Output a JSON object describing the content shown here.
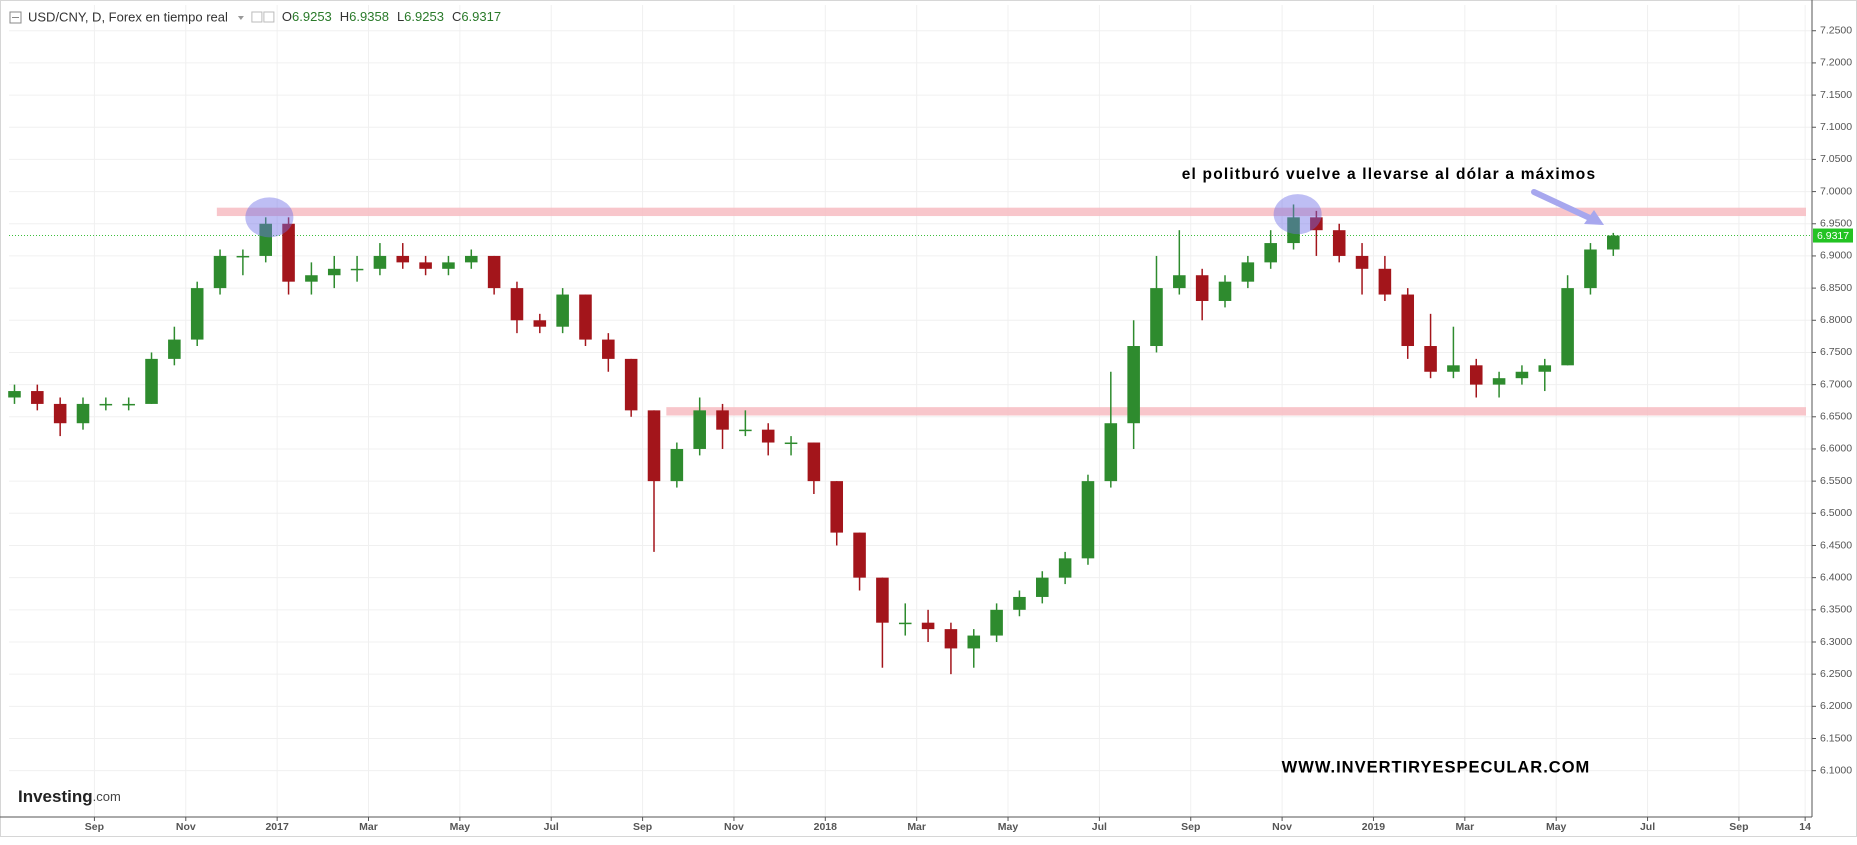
{
  "chart_data": {
    "type": "candlestick",
    "title": "USD/CNY, D, Forex en tiempo real",
    "ohlc_header": [
      {
        "label": "O",
        "value": 6.9253
      },
      {
        "label": "H",
        "value": 6.9358
      },
      {
        "label": "L",
        "value": 6.9253
      },
      {
        "label": "C",
        "value": 6.9317
      }
    ],
    "last_price": 6.9317,
    "annotation": "el politburó vuelve a llevarse al dólar a máximos",
    "watermark": "WWW.INVERTIRYESPECULAR.COM",
    "logo": {
      "name": "Investing",
      "suffix": ".com"
    },
    "up_color": "#2e8b2e",
    "down_color": "#a3151b",
    "xlim": [
      -1.87,
      37.6
    ],
    "xticks": [
      {
        "value": 0,
        "label": "Sep"
      },
      {
        "value": 2,
        "label": "Nov"
      },
      {
        "value": 4,
        "label": "2017"
      },
      {
        "value": 6,
        "label": "Mar"
      },
      {
        "value": 8,
        "label": "May"
      },
      {
        "value": 10,
        "label": "Jul"
      },
      {
        "value": 12,
        "label": "Sep"
      },
      {
        "value": 14,
        "label": "Nov"
      },
      {
        "value": 16,
        "label": "2018"
      },
      {
        "value": 18,
        "label": "Mar"
      },
      {
        "value": 20,
        "label": "May"
      },
      {
        "value": 22,
        "label": "Jul"
      },
      {
        "value": 24,
        "label": "Sep"
      },
      {
        "value": 26,
        "label": "Nov"
      },
      {
        "value": 28,
        "label": "2019"
      },
      {
        "value": 30,
        "label": "Mar"
      },
      {
        "value": 32,
        "label": "May"
      },
      {
        "value": 34,
        "label": "Jul"
      },
      {
        "value": 36,
        "label": "Sep"
      },
      {
        "value": 37.45,
        "label": "14"
      }
    ],
    "ylim": [
      6.028,
      7.29
    ],
    "yticks": [
      {
        "value": 6.1,
        "label": "6.1000"
      },
      {
        "value": 6.15,
        "label": "6.1500"
      },
      {
        "value": 6.2,
        "label": "6.2000"
      },
      {
        "value": 6.25,
        "label": "6.2500"
      },
      {
        "value": 6.3,
        "label": "6.3000"
      },
      {
        "value": 6.35,
        "label": "6.3500"
      },
      {
        "value": 6.4,
        "label": "6.4000"
      },
      {
        "value": 6.45,
        "label": "6.4500"
      },
      {
        "value": 6.5,
        "label": "6.5000"
      },
      {
        "value": 6.55,
        "label": "6.5500"
      },
      {
        "value": 6.6,
        "label": "6.6000"
      },
      {
        "value": 6.65,
        "label": "6.6500"
      },
      {
        "value": 6.7,
        "label": "6.7000"
      },
      {
        "value": 6.75,
        "label": "6.7500"
      },
      {
        "value": 6.8,
        "label": "6.8000"
      },
      {
        "value": 6.85,
        "label": "6.8500"
      },
      {
        "value": 6.9,
        "label": "6.9000"
      },
      {
        "value": 6.95,
        "label": "6.9500"
      },
      {
        "value": 7.0,
        "label": "7.0000"
      },
      {
        "value": 7.05,
        "label": "7.0500"
      },
      {
        "value": 7.1,
        "label": "7.1000"
      },
      {
        "value": 7.15,
        "label": "7.1500"
      },
      {
        "value": 7.2,
        "label": "7.2000"
      },
      {
        "value": 7.25,
        "label": "7.2500"
      }
    ],
    "grid": true,
    "levels": [
      {
        "low": 6.962,
        "high": 6.975,
        "from": 2.68
      },
      {
        "low": 6.652,
        "high": 6.665,
        "from": 12.52
      }
    ],
    "highlights": [
      {
        "x": 3.83,
        "y": 6.96
      },
      {
        "x": 26.34,
        "y": 6.965
      }
    ],
    "x": [
      -1.75,
      -1.25,
      -0.75,
      -0.25,
      0.25,
      0.75,
      1.25,
      1.75,
      2.25,
      2.75,
      3.25,
      3.75,
      4.25,
      4.75,
      5.25,
      5.75,
      6.25,
      6.75,
      7.25,
      7.75,
      8.25,
      8.75,
      9.25,
      9.75,
      10.25,
      10.75,
      11.25,
      11.75,
      12.25,
      12.75,
      13.25,
      13.75,
      14.25,
      14.75,
      15.25,
      15.75,
      16.25,
      16.75,
      17.25,
      17.75,
      18.25,
      18.75,
      19.25,
      19.75,
      20.25,
      20.75,
      21.25,
      21.75,
      22.25,
      22.75,
      23.25,
      23.75,
      24.25,
      24.75,
      25.25,
      25.75,
      26.25,
      26.75,
      27.25,
      27.75,
      28.25,
      28.75,
      29.25,
      29.75,
      30.25,
      30.75,
      31.25,
      31.75,
      32.25,
      32.75,
      33.25
    ],
    "open": [
      6.68,
      6.69,
      6.67,
      6.64,
      6.67,
      6.67,
      6.67,
      6.74,
      6.77,
      6.85,
      6.9,
      6.9,
      6.95,
      6.86,
      6.87,
      6.88,
      6.88,
      6.9,
      6.89,
      6.88,
      6.89,
      6.9,
      6.85,
      6.8,
      6.79,
      6.84,
      6.77,
      6.74,
      6.66,
      6.55,
      6.6,
      6.66,
      6.63,
      6.63,
      6.61,
      6.61,
      6.55,
      6.47,
      6.4,
      6.33,
      6.33,
      6.32,
      6.29,
      6.31,
      6.35,
      6.37,
      6.4,
      6.43,
      6.55,
      6.64,
      6.76,
      6.85,
      6.87,
      6.83,
      6.86,
      6.89,
      6.92,
      6.96,
      6.94,
      6.9,
      6.88,
      6.84,
      6.76,
      6.72,
      6.73,
      6.7,
      6.71,
      6.72,
      6.73,
      6.85,
      6.91
    ],
    "high": [
      6.7,
      6.7,
      6.68,
      6.68,
      6.68,
      6.68,
      6.75,
      6.79,
      6.86,
      6.91,
      6.91,
      6.96,
      6.96,
      6.89,
      6.9,
      6.9,
      6.92,
      6.92,
      6.9,
      6.9,
      6.91,
      6.9,
      6.86,
      6.81,
      6.85,
      6.84,
      6.78,
      6.74,
      6.66,
      6.61,
      6.68,
      6.67,
      6.66,
      6.64,
      6.62,
      6.61,
      6.55,
      6.47,
      6.4,
      6.36,
      6.35,
      6.33,
      6.32,
      6.36,
      6.38,
      6.41,
      6.44,
      6.56,
      6.72,
      6.8,
      6.9,
      6.94,
      6.88,
      6.87,
      6.9,
      6.94,
      6.98,
      6.97,
      6.95,
      6.92,
      6.9,
      6.85,
      6.81,
      6.79,
      6.74,
      6.72,
      6.73,
      6.74,
      6.87,
      6.92,
      6.9358
    ],
    "low": [
      6.67,
      6.66,
      6.62,
      6.63,
      6.66,
      6.66,
      6.67,
      6.73,
      6.76,
      6.84,
      6.87,
      6.89,
      6.84,
      6.84,
      6.85,
      6.86,
      6.87,
      6.88,
      6.87,
      6.87,
      6.88,
      6.84,
      6.78,
      6.78,
      6.78,
      6.76,
      6.72,
      6.65,
      6.44,
      6.54,
      6.59,
      6.6,
      6.62,
      6.59,
      6.59,
      6.53,
      6.45,
      6.38,
      6.26,
      6.31,
      6.3,
      6.25,
      6.26,
      6.3,
      6.34,
      6.36,
      6.39,
      6.42,
      6.54,
      6.6,
      6.75,
      6.84,
      6.8,
      6.82,
      6.85,
      6.88,
      6.91,
      6.9,
      6.89,
      6.84,
      6.83,
      6.74,
      6.71,
      6.71,
      6.68,
      6.68,
      6.7,
      6.69,
      6.73,
      6.84,
      6.9
    ],
    "close": [
      6.69,
      6.67,
      6.64,
      6.67,
      6.67,
      6.67,
      6.74,
      6.77,
      6.85,
      6.9,
      6.9,
      6.95,
      6.86,
      6.87,
      6.88,
      6.88,
      6.9,
      6.89,
      6.88,
      6.89,
      6.9,
      6.85,
      6.8,
      6.79,
      6.84,
      6.77,
      6.74,
      6.66,
      6.55,
      6.6,
      6.66,
      6.63,
      6.63,
      6.61,
      6.61,
      6.55,
      6.47,
      6.4,
      6.33,
      6.33,
      6.32,
      6.29,
      6.31,
      6.35,
      6.37,
      6.4,
      6.43,
      6.55,
      6.64,
      6.76,
      6.85,
      6.87,
      6.83,
      6.86,
      6.89,
      6.92,
      6.96,
      6.94,
      6.9,
      6.88,
      6.84,
      6.76,
      6.72,
      6.73,
      6.7,
      6.71,
      6.72,
      6.73,
      6.85,
      6.91,
      6.9317
    ]
  }
}
